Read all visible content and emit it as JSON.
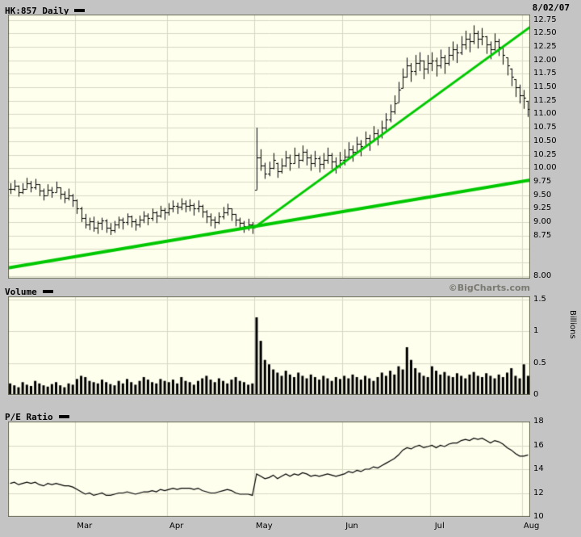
{
  "header": {
    "symbol_label": "HK:857 Daily",
    "date": "8/02/07"
  },
  "volume_header": {
    "label": "Volume",
    "credit": "©BigCharts.com"
  },
  "pe_header": {
    "label": "P/E Ratio"
  },
  "colors": {
    "background": "#c4c4c4",
    "plot_bg": "#ffffee",
    "grid": "#d8d8c4",
    "bars": "#000000",
    "trend": "#00c800",
    "border": "#666655",
    "credit_text": "#7a7a72"
  },
  "chart_data": [
    {
      "type": "bar",
      "subtype": "ohlc-bars",
      "title": "HK:857 Daily",
      "date": "8/02/07",
      "legend_position": "top-left",
      "grid": true,
      "months": [
        "Mar",
        "Apr",
        "May",
        "Jun",
        "Jul",
        "Aug"
      ],
      "month_start_indices": [
        16,
        38,
        59,
        80,
        101,
        123
      ],
      "ylim": [
        7.95,
        12.85
      ],
      "ytick_labels": [
        "12.75",
        "12.50",
        "12.25",
        "12.00",
        "11.75",
        "11.50",
        "11.25",
        "11.00",
        "10.75",
        "10.50",
        "10.25",
        "10.00",
        "9.75",
        "9.50",
        "9.25",
        "9.00",
        "8.75",
        "8.00"
      ],
      "ytick_values": [
        12.75,
        12.5,
        12.25,
        12.0,
        11.75,
        11.5,
        11.25,
        11.0,
        10.75,
        10.5,
        10.25,
        10.0,
        9.75,
        9.5,
        9.25,
        9.0,
        8.75,
        8.0
      ],
      "grid_step": 0.25,
      "bars_hlc": [
        [
          9.72,
          9.52,
          9.62
        ],
        [
          9.78,
          9.58,
          9.68
        ],
        [
          9.68,
          9.47,
          9.55
        ],
        [
          9.72,
          9.52,
          9.62
        ],
        [
          9.82,
          9.62,
          9.72
        ],
        [
          9.76,
          9.55,
          9.65
        ],
        [
          9.8,
          9.6,
          9.7
        ],
        [
          9.7,
          9.48,
          9.58
        ],
        [
          9.62,
          9.4,
          9.5
        ],
        [
          9.7,
          9.5,
          9.6
        ],
        [
          9.65,
          9.45,
          9.55
        ],
        [
          9.75,
          9.55,
          9.65
        ],
        [
          9.64,
          9.42,
          9.52
        ],
        [
          9.57,
          9.35,
          9.45
        ],
        [
          9.62,
          9.4,
          9.5
        ],
        [
          9.52,
          9.28,
          9.4
        ],
        [
          9.42,
          9.15,
          9.25
        ],
        [
          9.28,
          9.0,
          9.08
        ],
        [
          9.15,
          8.88,
          8.95
        ],
        [
          9.08,
          8.85,
          9.02
        ],
        [
          9.1,
          8.82,
          8.9
        ],
        [
          9.02,
          8.78,
          8.98
        ],
        [
          9.08,
          8.85,
          9.03
        ],
        [
          9.05,
          8.8,
          8.9
        ],
        [
          8.98,
          8.76,
          8.85
        ],
        [
          9.02,
          8.8,
          8.95
        ],
        [
          9.1,
          8.88,
          9.05
        ],
        [
          9.08,
          8.86,
          9.0
        ],
        [
          9.16,
          8.94,
          9.1
        ],
        [
          9.12,
          8.9,
          9.02
        ],
        [
          9.06,
          8.84,
          8.95
        ],
        [
          9.12,
          8.9,
          9.05
        ],
        [
          9.2,
          8.98,
          9.12
        ],
        [
          9.16,
          8.94,
          9.08
        ],
        [
          9.25,
          9.02,
          9.18
        ],
        [
          9.2,
          8.98,
          9.12
        ],
        [
          9.3,
          9.08,
          9.22
        ],
        [
          9.26,
          9.04,
          9.18
        ],
        [
          9.35,
          9.12,
          9.25
        ],
        [
          9.4,
          9.18,
          9.3
        ],
        [
          9.36,
          9.15,
          9.28
        ],
        [
          9.44,
          9.22,
          9.35
        ],
        [
          9.4,
          9.18,
          9.3
        ],
        [
          9.42,
          9.2,
          9.32
        ],
        [
          9.35,
          9.12,
          9.25
        ],
        [
          9.4,
          9.18,
          9.3
        ],
        [
          9.32,
          9.08,
          9.2
        ],
        [
          9.22,
          8.98,
          9.1
        ],
        [
          9.16,
          8.92,
          9.05
        ],
        [
          9.1,
          8.88,
          9.0
        ],
        [
          9.18,
          8.96,
          9.1
        ],
        [
          9.28,
          9.05,
          9.18
        ],
        [
          9.34,
          9.12,
          9.25
        ],
        [
          9.25,
          9.02,
          9.15
        ],
        [
          9.15,
          8.92,
          9.05
        ],
        [
          9.08,
          8.85,
          8.98
        ],
        [
          9.02,
          8.8,
          8.92
        ],
        [
          9.06,
          8.84,
          8.96
        ],
        [
          9.0,
          8.78,
          8.9
        ],
        [
          10.75,
          9.6,
          10.2
        ],
        [
          10.35,
          9.95,
          10.05
        ],
        [
          10.1,
          9.8,
          9.9
        ],
        [
          10.12,
          9.85,
          10.0
        ],
        [
          10.28,
          9.98,
          10.15
        ],
        [
          10.1,
          9.82,
          9.95
        ],
        [
          10.18,
          9.9,
          10.05
        ],
        [
          10.32,
          10.02,
          10.2
        ],
        [
          10.25,
          9.95,
          10.1
        ],
        [
          10.38,
          10.08,
          10.25
        ],
        [
          10.28,
          10.0,
          10.15
        ],
        [
          10.42,
          10.12,
          10.3
        ],
        [
          10.35,
          10.05,
          10.2
        ],
        [
          10.25,
          9.95,
          10.1
        ],
        [
          10.32,
          10.02,
          10.18
        ],
        [
          10.22,
          9.92,
          10.08
        ],
        [
          10.28,
          9.98,
          10.15
        ],
        [
          10.38,
          10.08,
          10.25
        ],
        [
          10.28,
          9.98,
          10.12
        ],
        [
          10.2,
          9.9,
          10.05
        ],
        [
          10.3,
          10.0,
          10.15
        ],
        [
          10.35,
          10.05,
          10.22
        ],
        [
          10.48,
          10.18,
          10.35
        ],
        [
          10.42,
          10.12,
          10.3
        ],
        [
          10.58,
          10.28,
          10.45
        ],
        [
          10.52,
          10.22,
          10.4
        ],
        [
          10.68,
          10.38,
          10.55
        ],
        [
          10.62,
          10.32,
          10.5
        ],
        [
          10.78,
          10.48,
          10.65
        ],
        [
          10.72,
          10.42,
          10.6
        ],
        [
          10.88,
          10.55,
          10.75
        ],
        [
          11.02,
          10.7,
          10.9
        ],
        [
          11.18,
          10.85,
          11.05
        ],
        [
          11.35,
          11.0,
          11.2
        ],
        [
          11.6,
          11.22,
          11.45
        ],
        [
          11.85,
          11.48,
          11.7
        ],
        [
          12.05,
          11.68,
          11.9
        ],
        [
          11.95,
          11.6,
          11.8
        ],
        [
          12.1,
          11.72,
          11.95
        ],
        [
          12.15,
          11.8,
          12.0
        ],
        [
          12.0,
          11.65,
          11.85
        ],
        [
          12.1,
          11.75,
          11.95
        ],
        [
          12.15,
          11.8,
          12.0
        ],
        [
          12.05,
          11.7,
          11.9
        ],
        [
          12.2,
          11.85,
          12.05
        ],
        [
          12.1,
          11.75,
          11.95
        ],
        [
          12.25,
          11.9,
          12.1
        ],
        [
          12.35,
          12.0,
          12.2
        ],
        [
          12.3,
          11.95,
          12.15
        ],
        [
          12.45,
          12.1,
          12.3
        ],
        [
          12.55,
          12.2,
          12.4
        ],
        [
          12.5,
          12.15,
          12.35
        ],
        [
          12.65,
          12.3,
          12.5
        ],
        [
          12.55,
          12.22,
          12.4
        ],
        [
          12.6,
          12.28,
          12.45
        ],
        [
          12.45,
          12.12,
          12.3
        ],
        [
          12.35,
          12.02,
          12.2
        ],
        [
          12.5,
          12.18,
          12.35
        ],
        [
          12.4,
          12.08,
          12.25
        ],
        [
          12.25,
          11.92,
          12.1
        ],
        [
          12.05,
          11.72,
          11.9
        ],
        [
          11.85,
          11.52,
          11.7
        ],
        [
          11.65,
          11.32,
          11.5
        ],
        [
          11.55,
          11.2,
          11.35
        ],
        [
          11.45,
          11.1,
          11.3
        ],
        [
          11.25,
          10.95,
          11.1
        ]
      ],
      "trendlines": [
        {
          "x0_frac": 0.0,
          "v0": 8.15,
          "x1_frac": 1.0,
          "v1": 9.78,
          "width": 4
        },
        {
          "x0_frac": 0.472,
          "v0": 8.9,
          "x1_frac": 1.0,
          "v1": 12.62,
          "width": 3
        }
      ]
    },
    {
      "type": "bar",
      "title": "Volume",
      "ylabel": "Billions",
      "grid": true,
      "ylim": [
        0,
        1.55
      ],
      "ytick_labels": [
        "1.5",
        "1",
        "0.5",
        "0"
      ],
      "ytick_values": [
        1.5,
        1.0,
        0.5,
        0
      ],
      "values": [
        0.18,
        0.15,
        0.12,
        0.2,
        0.16,
        0.14,
        0.22,
        0.18,
        0.15,
        0.13,
        0.17,
        0.2,
        0.15,
        0.12,
        0.18,
        0.16,
        0.25,
        0.3,
        0.28,
        0.22,
        0.2,
        0.18,
        0.24,
        0.2,
        0.17,
        0.15,
        0.22,
        0.18,
        0.25,
        0.2,
        0.16,
        0.22,
        0.28,
        0.24,
        0.2,
        0.18,
        0.25,
        0.22,
        0.2,
        0.24,
        0.18,
        0.28,
        0.22,
        0.2,
        0.16,
        0.22,
        0.26,
        0.3,
        0.24,
        0.2,
        0.26,
        0.22,
        0.18,
        0.24,
        0.28,
        0.22,
        0.2,
        0.16,
        0.18,
        1.22,
        0.85,
        0.55,
        0.48,
        0.4,
        0.35,
        0.3,
        0.38,
        0.32,
        0.28,
        0.35,
        0.3,
        0.26,
        0.32,
        0.28,
        0.24,
        0.3,
        0.26,
        0.22,
        0.28,
        0.25,
        0.3,
        0.26,
        0.32,
        0.28,
        0.24,
        0.3,
        0.26,
        0.22,
        0.28,
        0.35,
        0.3,
        0.38,
        0.32,
        0.45,
        0.4,
        0.75,
        0.55,
        0.42,
        0.35,
        0.3,
        0.28,
        0.45,
        0.38,
        0.32,
        0.36,
        0.3,
        0.28,
        0.34,
        0.3,
        0.26,
        0.32,
        0.36,
        0.3,
        0.28,
        0.34,
        0.3,
        0.26,
        0.32,
        0.28,
        0.35,
        0.42,
        0.3,
        0.26,
        0.48,
        0.3
      ]
    },
    {
      "type": "line",
      "title": "P/E Ratio",
      "grid": true,
      "ylim": [
        10,
        18
      ],
      "ytick_labels": [
        "18",
        "16",
        "14",
        "12",
        "10"
      ],
      "ytick_values": [
        18,
        16,
        14,
        12,
        10
      ],
      "values": [
        12.8,
        12.9,
        12.7,
        12.8,
        12.9,
        12.8,
        12.9,
        12.7,
        12.6,
        12.8,
        12.7,
        12.8,
        12.7,
        12.6,
        12.6,
        12.5,
        12.3,
        12.1,
        11.9,
        12.0,
        11.8,
        11.9,
        12.0,
        11.8,
        11.8,
        11.9,
        12.0,
        12.0,
        12.1,
        12.0,
        11.9,
        12.0,
        12.1,
        12.1,
        12.2,
        12.1,
        12.3,
        12.2,
        12.3,
        12.4,
        12.3,
        12.4,
        12.4,
        12.4,
        12.3,
        12.4,
        12.2,
        12.1,
        12.0,
        12.0,
        12.1,
        12.2,
        12.3,
        12.2,
        12.0,
        11.9,
        11.9,
        11.9,
        11.8,
        13.6,
        13.4,
        13.2,
        13.3,
        13.5,
        13.2,
        13.4,
        13.6,
        13.4,
        13.6,
        13.5,
        13.7,
        13.6,
        13.4,
        13.5,
        13.4,
        13.5,
        13.6,
        13.5,
        13.4,
        13.5,
        13.6,
        13.8,
        13.7,
        13.9,
        13.8,
        14.0,
        14.0,
        14.2,
        14.1,
        14.3,
        14.5,
        14.7,
        14.9,
        15.2,
        15.6,
        15.8,
        15.7,
        15.9,
        16.0,
        15.8,
        15.9,
        16.0,
        15.8,
        16.0,
        15.9,
        16.1,
        16.2,
        16.2,
        16.4,
        16.5,
        16.4,
        16.6,
        16.5,
        16.6,
        16.4,
        16.2,
        16.4,
        16.3,
        16.1,
        15.8,
        15.6,
        15.3,
        15.1,
        15.1,
        15.2
      ]
    }
  ]
}
